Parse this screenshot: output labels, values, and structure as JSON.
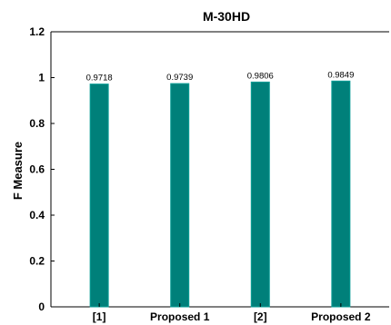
{
  "chart_data": {
    "type": "bar",
    "title": "M-30HD",
    "xlabel": "",
    "ylabel": "F Measure",
    "categories": [
      "[1]",
      "Proposed 1",
      "[2]",
      "Proposed 2"
    ],
    "values": [
      0.9718,
      0.9739,
      0.9806,
      0.9849
    ],
    "data_labels": [
      "0.9718",
      "0.9739",
      "0.9806",
      "0.9849"
    ],
    "ylim": [
      0,
      1.2
    ],
    "yticks": [
      "0",
      "0.2",
      "0.4",
      "0.6",
      "0.8",
      "1",
      "1.2"
    ],
    "bar_color": "#00807a",
    "grid": false
  }
}
